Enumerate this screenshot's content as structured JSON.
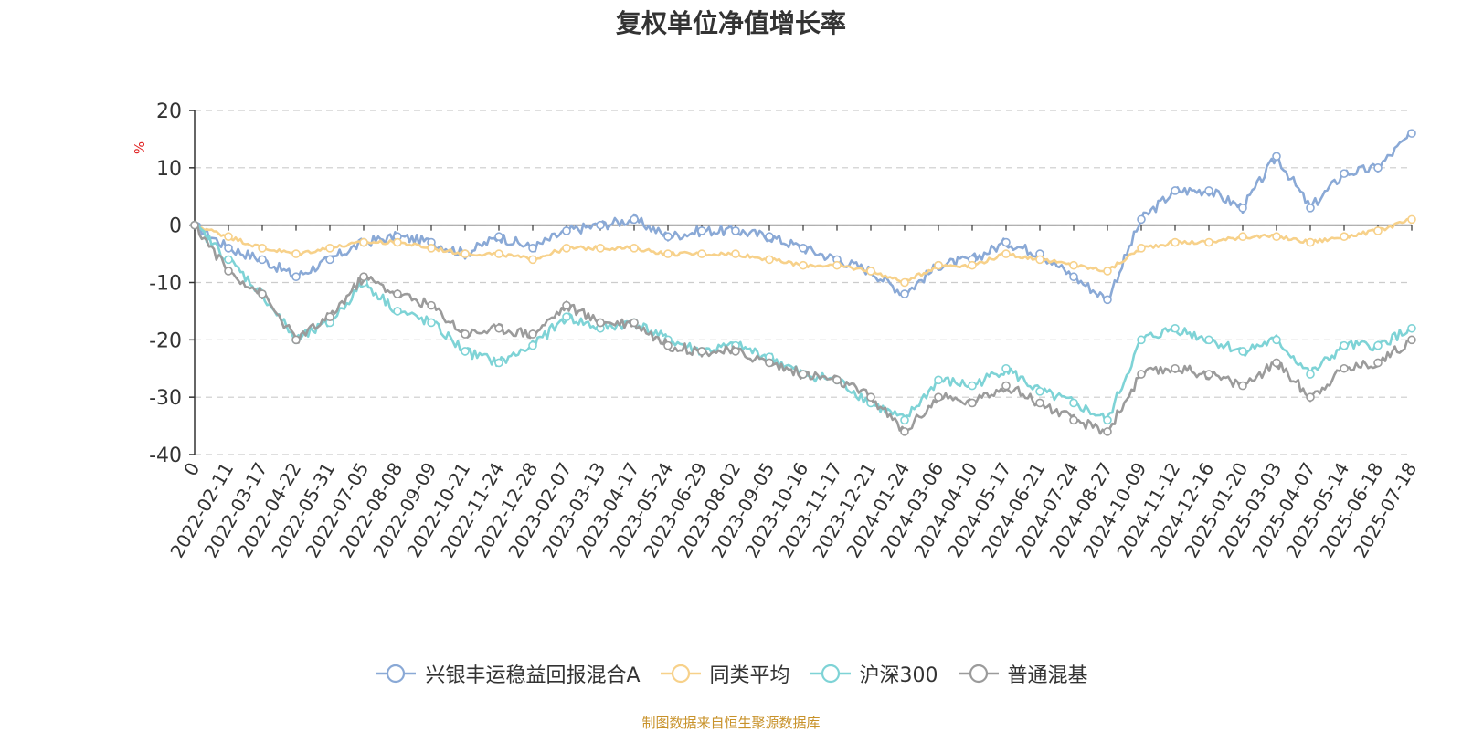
{
  "title": "复权单位净值增长率",
  "source": "制图数据来自恒生聚源数据库",
  "chart_data": {
    "type": "line",
    "title": "复权单位净值增长率",
    "ylabel": "%",
    "ylim": [
      -40,
      20
    ],
    "yticks": [
      20,
      10,
      0,
      -10,
      -20,
      -30,
      -40
    ],
    "grid": true,
    "legend_position": "bottom",
    "categories": [
      "0",
      "2022-02-11",
      "2022-03-17",
      "2022-04-22",
      "2022-05-31",
      "2022-07-05",
      "2022-08-08",
      "2022-09-09",
      "2022-10-21",
      "2022-11-24",
      "2022-12-28",
      "2023-02-07",
      "2023-03-13",
      "2023-04-17",
      "2023-05-24",
      "2023-06-29",
      "2023-08-02",
      "2023-09-05",
      "2023-10-16",
      "2023-11-17",
      "2023-12-21",
      "2024-01-24",
      "2024-03-06",
      "2024-04-10",
      "2024-05-17",
      "2024-06-21",
      "2024-07-24",
      "2024-08-27",
      "2024-10-09",
      "2024-11-12",
      "2024-12-16",
      "2025-01-20",
      "2025-03-03",
      "2025-04-07",
      "2025-05-14",
      "2025-06-18",
      "2025-07-18"
    ],
    "series": [
      {
        "name": "兴银丰运稳益回报混合A",
        "color": "#8aa9d6",
        "values": [
          0,
          -4,
          -6,
          -9,
          -6,
          -3,
          -2,
          -3,
          -5,
          -2,
          -4,
          -1,
          0,
          1,
          -2,
          -1,
          -1,
          -2,
          -4,
          -6,
          -8,
          -12,
          -7,
          -6,
          -3,
          -5,
          -9,
          -13,
          1,
          6,
          6,
          3,
          12,
          3,
          9,
          10,
          16
        ]
      },
      {
        "name": "同类平均",
        "color": "#f7d18a",
        "values": [
          0,
          -2,
          -4,
          -5,
          -4,
          -3,
          -3,
          -4,
          -5,
          -5,
          -6,
          -4,
          -4,
          -4,
          -5,
          -5,
          -5,
          -6,
          -7,
          -7,
          -8,
          -10,
          -7,
          -7,
          -5,
          -6,
          -7,
          -8,
          -4,
          -3,
          -3,
          -2,
          -2,
          -3,
          -2,
          -1,
          1
        ]
      },
      {
        "name": "沪深300",
        "color": "#7ed3d6",
        "values": [
          0,
          -6,
          -12,
          -20,
          -17,
          -10,
          -15,
          -17,
          -22,
          -24,
          -21,
          -16,
          -18,
          -17,
          -20,
          -22,
          -21,
          -23,
          -26,
          -27,
          -31,
          -34,
          -27,
          -28,
          -25,
          -29,
          -31,
          -34,
          -20,
          -18,
          -20,
          -22,
          -20,
          -26,
          -21,
          -21,
          -18
        ]
      },
      {
        "name": "普通混基",
        "color": "#9b9b9b",
        "values": [
          0,
          -8,
          -12,
          -20,
          -16,
          -9,
          -12,
          -14,
          -19,
          -18,
          -19,
          -14,
          -17,
          -17,
          -21,
          -22,
          -22,
          -24,
          -26,
          -27,
          -30,
          -36,
          -30,
          -31,
          -28,
          -31,
          -34,
          -36,
          -26,
          -25,
          -26,
          -28,
          -24,
          -30,
          -25,
          -24,
          -20
        ]
      }
    ]
  }
}
